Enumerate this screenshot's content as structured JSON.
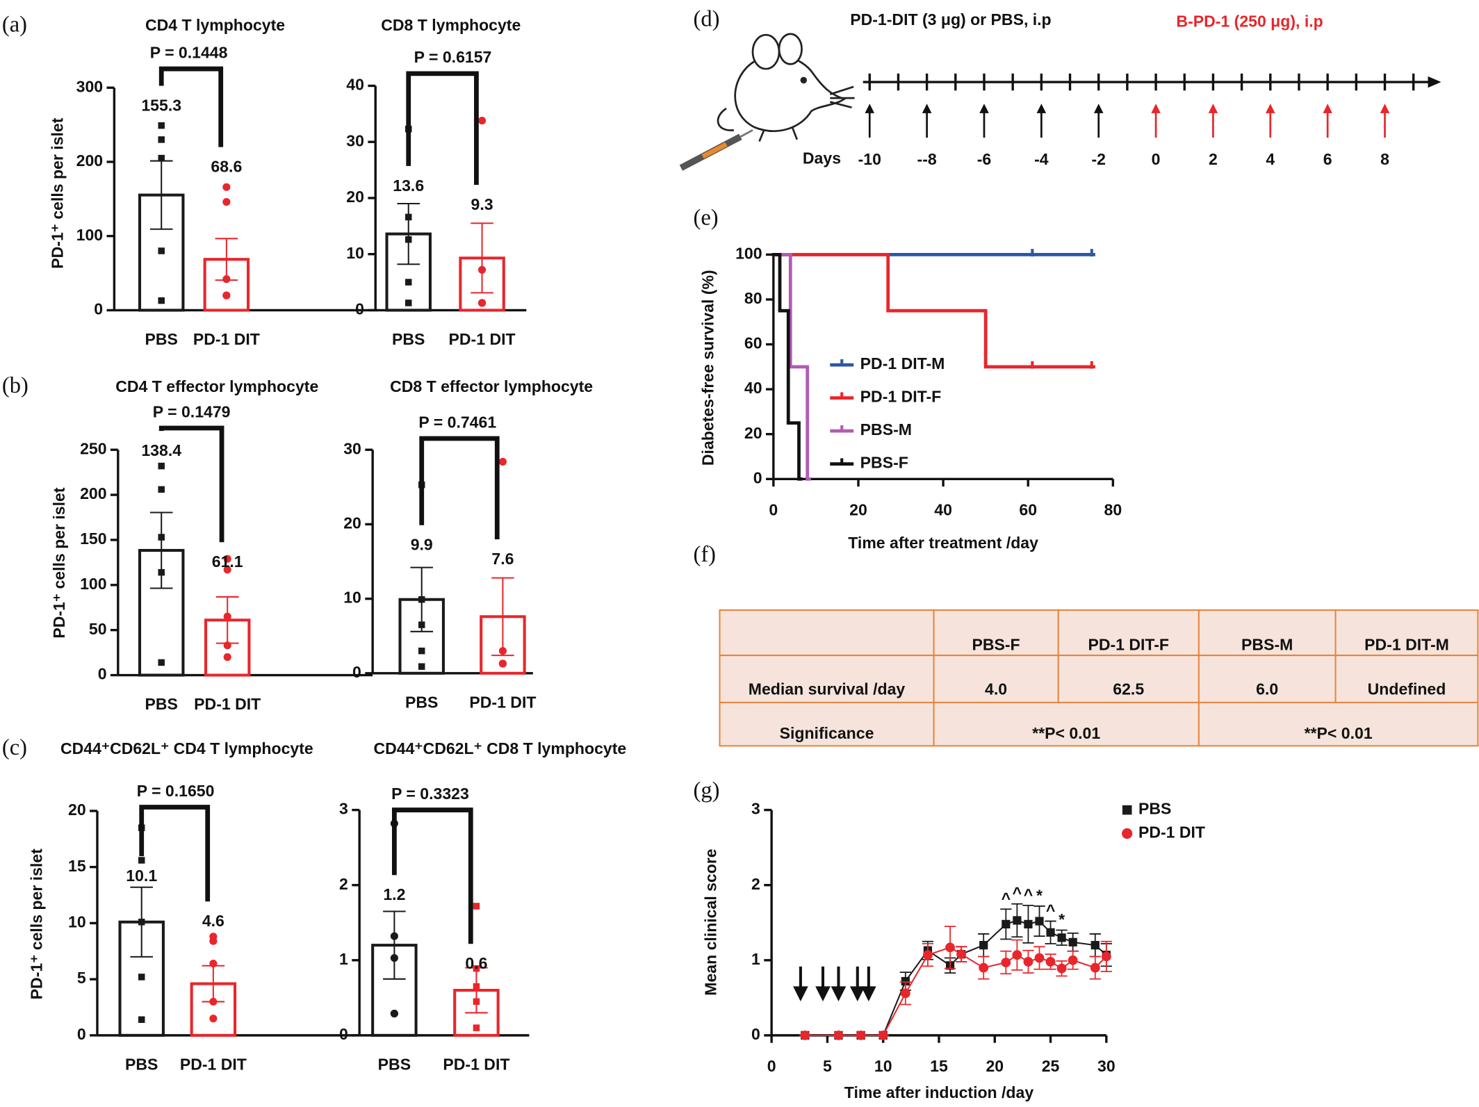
{
  "chart_data": [
    {
      "type": "bar",
      "panel": "(a)",
      "title": "CD4 T lymphocyte",
      "p_value": "P = 0.1448",
      "ylabel": "PD-1⁺ cells per islet",
      "categories": [
        "PBS",
        "PD-1 DIT"
      ],
      "values": [
        155.3,
        68.6
      ],
      "errors": [
        46,
        28
      ],
      "points": [
        [
          249,
          230,
          205,
          80,
          13
        ],
        [
          166,
          146,
          42,
          20,
          20
        ]
      ],
      "colors": [
        "#1a1a1a",
        "#e8262b"
      ],
      "markers": [
        "square",
        "circle"
      ],
      "ylim": [
        0,
        300
      ],
      "yticks": [
        0,
        100,
        200,
        300
      ]
    },
    {
      "type": "bar",
      "title": "CD8 T lymphocyte",
      "p_value": "P = 0.6157",
      "categories": [
        "PBS",
        "PD-1 DIT"
      ],
      "values": [
        13.6,
        9.3
      ],
      "errors": [
        5.4,
        6.2
      ],
      "points": [
        [
          32.3,
          16.6,
          12.6,
          5,
          1.3
        ],
        [
          33.8,
          7.2,
          1.3,
          1.3,
          1.3
        ]
      ],
      "colors": [
        "#1a1a1a",
        "#e8262b"
      ],
      "markers": [
        "square",
        "circle"
      ],
      "ylim": [
        0,
        40
      ],
      "yticks": [
        0,
        10,
        20,
        30,
        40
      ]
    },
    {
      "type": "bar",
      "panel": "(b)",
      "title": "CD4 T effector lymphocyte",
      "p_value": "P = 0.1479",
      "ylabel": "PD-1⁺ cells per islet",
      "categories": [
        "PBS",
        "PD-1 DIT"
      ],
      "values": [
        138.4,
        61.1
      ],
      "errors": [
        42,
        25.7
      ],
      "points": [
        [
          232,
          206,
          153,
          114,
          14
        ],
        [
          129,
          117,
          65,
          33,
          20
        ]
      ],
      "colors": [
        "#1a1a1a",
        "#e8262b"
      ],
      "markers": [
        "square",
        "circle"
      ],
      "ylim": [
        0,
        250
      ],
      "yticks": [
        0,
        50,
        100,
        150,
        200,
        250
      ]
    },
    {
      "type": "bar",
      "title": "CD8 T effector lymphocyte",
      "p_value": "P = 0.7461",
      "categories": [
        "PBS",
        "PD-1 DIT"
      ],
      "values": [
        9.9,
        7.6
      ],
      "errors": [
        4.3,
        5.2
      ],
      "points": [
        [
          25.3,
          9.9,
          6.5,
          3.0,
          0.9
        ],
        [
          28.4,
          3.0,
          1.3,
          1.3,
          1.3
        ]
      ],
      "colors": [
        "#1a1a1a",
        "#e8262b"
      ],
      "markers": [
        "square",
        "circle"
      ],
      "ylim": [
        0,
        30
      ],
      "yticks": [
        0,
        10,
        20,
        30
      ]
    },
    {
      "type": "bar",
      "panel": "(c)",
      "title": "CD44⁺CD62L⁺ CD4 T lymphocyte",
      "p_value": "P = 0.1650",
      "ylabel": "PD-1⁺ cells per islet",
      "categories": [
        "PBS",
        "PD-1 DIT"
      ],
      "values": [
        10.1,
        4.6
      ],
      "errors": [
        3.1,
        1.6
      ],
      "points": [
        [
          18.5,
          15.6,
          10.1,
          5.2,
          1.4
        ],
        [
          8.8,
          8.4,
          6.4,
          3.0,
          1.5
        ]
      ],
      "colors": [
        "#1a1a1a",
        "#e8262b"
      ],
      "markers": [
        "square",
        "circle"
      ],
      "ylim": [
        0,
        20
      ],
      "yticks": [
        0,
        5,
        10,
        15,
        20
      ]
    },
    {
      "type": "bar",
      "title": "CD44⁺CD62L⁺ CD8 T lymphocyte",
      "p_value": "P = 0.3323",
      "categories": [
        "PBS",
        "PD-1 DIT"
      ],
      "values": [
        1.2,
        0.6
      ],
      "errors": [
        0.45,
        0.3
      ],
      "points": [
        [
          2.82,
          1.32,
          1.03,
          0.29,
          0.29
        ],
        [
          1.72,
          0.89,
          0.65,
          0.45,
          0.1
        ]
      ],
      "colors": [
        "#1a1a1a",
        "#e8262b"
      ],
      "markers": [
        "circle",
        "square"
      ],
      "ylim": [
        0,
        3
      ],
      "yticks": [
        0,
        1,
        2,
        3
      ]
    },
    {
      "type": "step",
      "panel": "(e)",
      "xlabel": "Time after treatment /day",
      "ylabel": "Diabetes-free survival (%)",
      "xlim": [
        0,
        80
      ],
      "xticks": [
        0,
        20,
        40,
        60,
        80
      ],
      "ylim": [
        0,
        100
      ],
      "yticks": [
        0,
        20,
        40,
        60,
        80,
        100
      ],
      "legend": "lower left",
      "series": [
        {
          "name": "PD-1 DIT-M",
          "color": "#2c56a6",
          "x": [
            0,
            75
          ],
          "values": [
            100,
            100
          ],
          "censored": [
            61,
            75
          ]
        },
        {
          "name": "PD-1 DIT-F",
          "color": "#e8262b",
          "x": [
            0,
            27,
            50,
            75
          ],
          "values": [
            100,
            75,
            50,
            50
          ],
          "censored": [
            61,
            75
          ]
        },
        {
          "name": "PBS-M",
          "color": "#b15bb5",
          "x": [
            0,
            4,
            8
          ],
          "values": [
            100,
            50,
            0
          ]
        },
        {
          "name": "PBS-F",
          "color": "#111111",
          "x": [
            0,
            1.5,
            3.5,
            6
          ],
          "values": [
            100,
            75,
            25,
            0
          ]
        }
      ]
    },
    {
      "type": "line",
      "panel": "(g)",
      "xlabel": "Time after induction /day",
      "ylabel": "Mean clinical score",
      "xlim": [
        0,
        30
      ],
      "xticks": [
        0,
        5,
        10,
        15,
        20,
        25,
        30
      ],
      "ylim": [
        0,
        3
      ],
      "yticks": [
        0,
        1,
        2,
        3
      ],
      "legend": "upper right",
      "x": [
        3,
        6,
        8,
        10,
        12,
        14,
        16,
        17,
        19,
        21,
        22,
        23,
        24,
        25,
        26,
        27,
        29,
        30
      ],
      "series": [
        {
          "name": "PBS",
          "color": "#1a1a1a",
          "marker": "square",
          "values": [
            0,
            0,
            0,
            0,
            0.72,
            1.13,
            0.93,
            1.08,
            1.2,
            1.48,
            1.53,
            1.48,
            1.52,
            1.37,
            1.3,
            1.24,
            1.2,
            1.07
          ],
          "errors": [
            0,
            0,
            0,
            0,
            0.12,
            0.12,
            0.1,
            0.1,
            0.15,
            0.2,
            0.22,
            0.25,
            0.2,
            0.15,
            0.1,
            0.12,
            0.15,
            0.15
          ]
        },
        {
          "name": "PD-1 DIT",
          "color": "#e8262b",
          "marker": "circle",
          "values": [
            0,
            0,
            0,
            0,
            0.56,
            1.07,
            1.17,
            1.08,
            0.9,
            0.97,
            1.07,
            0.98,
            1.03,
            0.98,
            0.89,
            1.0,
            0.9,
            1.05
          ],
          "errors": [
            0,
            0,
            0,
            0,
            0.15,
            0.15,
            0.28,
            0.1,
            0.15,
            0.15,
            0.2,
            0.15,
            0.15,
            0.1,
            0.1,
            0.12,
            0.15,
            0.2
          ]
        }
      ],
      "annotations": [
        {
          "x": 21,
          "text": "^"
        },
        {
          "x": 22,
          "text": "^"
        },
        {
          "x": 23,
          "text": "^"
        },
        {
          "x": 24,
          "text": "*"
        },
        {
          "x": 25,
          "text": "^"
        },
        {
          "x": 26,
          "text": "*"
        }
      ],
      "arrows": [
        2.6,
        4.6,
        6,
        7.7,
        8.7
      ]
    }
  ],
  "timeline": {
    "panel": "(d)",
    "days_label": "Days",
    "pre": {
      "label": "PD-1-DIT (3 μg) or PBS, i.p",
      "color": "#111111",
      "days": [
        -10,
        {
          "value": -8,
          "label": "--8"
        },
        -6,
        -4,
        -2
      ]
    },
    "post": {
      "label": "B-PD-1 (250 μg), i.p",
      "color": "#e8262b",
      "days": [
        0,
        2,
        4,
        6,
        8
      ]
    }
  },
  "table": {
    "panel": "(f)",
    "columns": [
      "PBS-F",
      "PD-1 DIT-F",
      "PBS-M",
      "PD-1 DIT-M"
    ],
    "rows": [
      [
        "Median survival /day",
        "4.0",
        "62.5",
        "6.0",
        "Undefined"
      ]
    ],
    "significance": {
      "label": "Significance",
      "values": [
        "**P< 0.01",
        "**P< 0.01"
      ]
    }
  }
}
